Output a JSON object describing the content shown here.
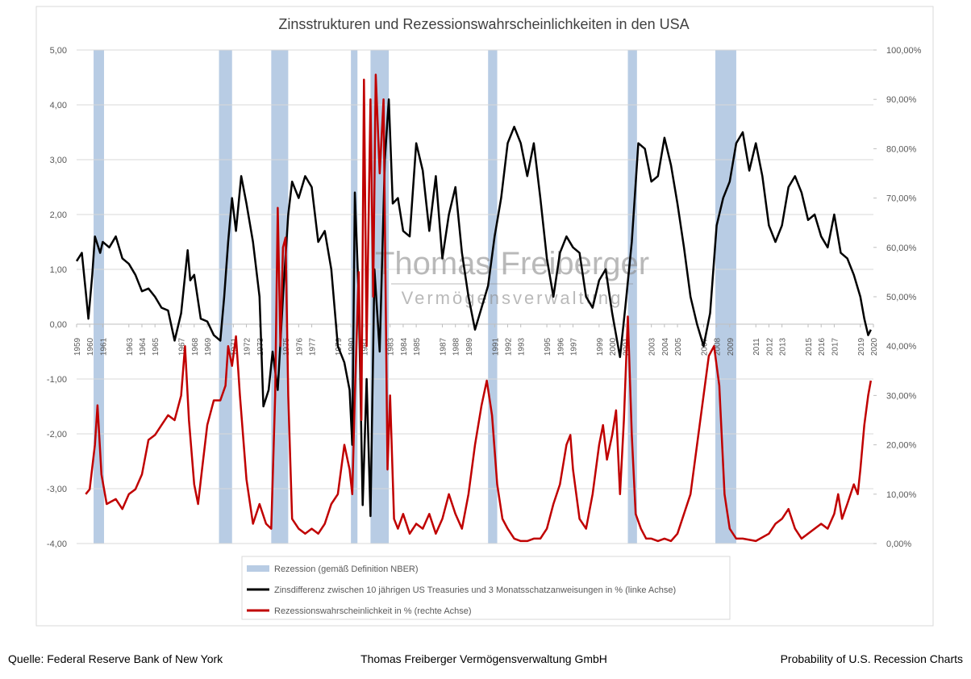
{
  "chart_data": {
    "type": "line",
    "title": "Zinsstrukturen und Rezessionswahrscheinlichkeiten in den USA",
    "watermark": [
      "Thomas Freiberger",
      "Vermögensverwaltung"
    ],
    "footer": [
      "Quelle: Federal Reserve Bank of New York",
      "Thomas Freiberger Vermögensverwaltung GmbH",
      "Probability of U.S. Recession Charts"
    ],
    "xlim": [
      1959,
      2020
    ],
    "xticks": [
      1959,
      1960,
      1961,
      1963,
      1964,
      1965,
      1967,
      1968,
      1969,
      1971,
      1972,
      1973,
      1975,
      1976,
      1977,
      1979,
      1980,
      1981,
      1983,
      1984,
      1985,
      1987,
      1988,
      1989,
      1991,
      1992,
      1993,
      1995,
      1996,
      1997,
      1999,
      2000,
      2001,
      2003,
      2004,
      2005,
      2007,
      2008,
      2009,
      2011,
      2012,
      2013,
      2015,
      2016,
      2017,
      2019,
      2020
    ],
    "ylim": [
      -4,
      5
    ],
    "yticks": [
      {
        "value": -4,
        "label": "-4,00"
      },
      {
        "value": -3,
        "label": "-3,00"
      },
      {
        "value": -2,
        "label": "-2,00"
      },
      {
        "value": -1,
        "label": "-1,00"
      },
      {
        "value": 0,
        "label": "0,00"
      },
      {
        "value": 1,
        "label": "1,00"
      },
      {
        "value": 2,
        "label": "2,00"
      },
      {
        "value": 3,
        "label": "3,00"
      },
      {
        "value": 4,
        "label": "4,00"
      },
      {
        "value": 5,
        "label": "5,00"
      }
    ],
    "y2lim": [
      0,
      100
    ],
    "y2ticks": [
      {
        "value": 0,
        "label": "0,00%"
      },
      {
        "value": 10,
        "label": "10,00%"
      },
      {
        "value": 20,
        "label": "20,00%"
      },
      {
        "value": 30,
        "label": "30,00%"
      },
      {
        "value": 40,
        "label": "40,00%"
      },
      {
        "value": 50,
        "label": "50,00%"
      },
      {
        "value": 60,
        "label": "60,00%"
      },
      {
        "value": 70,
        "label": "70,00%"
      },
      {
        "value": 80,
        "label": "80,00%"
      },
      {
        "value": 90,
        "label": "90,00%"
      },
      {
        "value": 100,
        "label": "100,00%"
      }
    ],
    "recessions": {
      "name": "Rezession (gemäß Definition NBER)",
      "color": "#b8cce4",
      "periods": [
        [
          1960.3,
          1961.1
        ],
        [
          1969.9,
          1970.9
        ],
        [
          1973.9,
          1975.2
        ],
        [
          1980.0,
          1980.5
        ],
        [
          1981.5,
          1982.9
        ],
        [
          1990.5,
          1991.2
        ],
        [
          2001.2,
          2001.9
        ],
        [
          2007.9,
          2009.5
        ]
      ]
    },
    "series": [
      {
        "name": "Zinsdifferenz zwischen 10 jährigen US Treasuries und 3 Monatsschatzanweisungen in % (linke Achse)",
        "color": "#000000",
        "axis": "y",
        "x": [
          1959.0,
          1959.4,
          1959.7,
          1959.9,
          1960.2,
          1960.4,
          1960.8,
          1961.0,
          1961.5,
          1962.0,
          1962.5,
          1963.0,
          1963.5,
          1964.0,
          1964.5,
          1965.0,
          1965.5,
          1966.0,
          1966.5,
          1967.0,
          1967.5,
          1967.7,
          1968.0,
          1968.5,
          1969.0,
          1969.5,
          1970.0,
          1970.3,
          1970.6,
          1970.9,
          1971.2,
          1971.6,
          1972.0,
          1972.5,
          1973.0,
          1973.3,
          1973.7,
          1974.0,
          1974.4,
          1974.8,
          1975.2,
          1975.5,
          1976.0,
          1976.5,
          1977.0,
          1977.5,
          1978.0,
          1978.5,
          1979.0,
          1979.5,
          1979.9,
          1980.1,
          1980.3,
          1980.6,
          1980.9,
          1981.2,
          1981.5,
          1981.8,
          1982.2,
          1982.6,
          1982.9,
          1983.2,
          1983.6,
          1984.0,
          1984.5,
          1985.0,
          1985.5,
          1986.0,
          1986.5,
          1987.0,
          1987.5,
          1988.0,
          1988.5,
          1989.0,
          1989.5,
          1990.0,
          1990.5,
          1991.0,
          1991.5,
          1992.0,
          1992.5,
          1993.0,
          1993.5,
          1994.0,
          1994.5,
          1995.0,
          1995.5,
          1996.0,
          1996.5,
          1997.0,
          1997.5,
          1998.0,
          1998.5,
          1999.0,
          1999.5,
          2000.0,
          2000.6,
          2001.0,
          2001.5,
          2002.0,
          2002.5,
          2003.0,
          2003.5,
          2004.0,
          2004.5,
          2005.0,
          2005.5,
          2006.0,
          2006.5,
          2007.0,
          2007.5,
          2008.0,
          2008.5,
          2009.0,
          2009.5,
          2010.0,
          2010.5,
          2011.0,
          2011.5,
          2012.0,
          2012.5,
          2013.0,
          2013.5,
          2014.0,
          2014.5,
          2015.0,
          2015.5,
          2016.0,
          2016.5,
          2017.0,
          2017.5,
          2018.0,
          2018.5,
          2019.0,
          2019.3,
          2019.6,
          2019.8
        ],
        "values": [
          1.15,
          1.3,
          0.6,
          0.1,
          0.9,
          1.6,
          1.3,
          1.5,
          1.4,
          1.6,
          1.2,
          1.1,
          0.9,
          0.6,
          0.65,
          0.5,
          0.3,
          0.25,
          -0.3,
          0.2,
          1.35,
          0.8,
          0.9,
          0.1,
          0.05,
          -0.2,
          -0.3,
          0.5,
          1.5,
          2.3,
          1.7,
          2.7,
          2.2,
          1.5,
          0.5,
          -1.5,
          -1.2,
          -0.5,
          -1.2,
          0.5,
          2.0,
          2.6,
          2.3,
          2.7,
          2.5,
          1.5,
          1.7,
          1.0,
          -0.4,
          -0.7,
          -1.2,
          -2.2,
          2.4,
          0.5,
          -3.3,
          -1.0,
          -3.5,
          1.0,
          -0.5,
          3.0,
          4.1,
          2.2,
          2.3,
          1.7,
          1.6,
          3.3,
          2.8,
          1.7,
          2.7,
          1.2,
          2.0,
          2.5,
          1.3,
          0.5,
          -0.1,
          0.3,
          0.7,
          1.6,
          2.3,
          3.3,
          3.6,
          3.3,
          2.7,
          3.3,
          2.3,
          1.2,
          0.5,
          1.3,
          1.6,
          1.4,
          1.3,
          0.5,
          0.3,
          0.8,
          1.0,
          0.2,
          -0.6,
          0.3,
          1.5,
          3.3,
          3.2,
          2.6,
          2.7,
          3.4,
          2.9,
          2.2,
          1.4,
          0.5,
          0,
          -0.4,
          0.2,
          1.8,
          2.3,
          2.6,
          3.3,
          3.5,
          2.8,
          3.3,
          2.7,
          1.8,
          1.5,
          1.8,
          2.5,
          2.7,
          2.4,
          1.9,
          2.0,
          1.6,
          1.4,
          2.0,
          1.3,
          1.2,
          0.9,
          0.5,
          0.1,
          -0.2,
          -0.1
        ]
      },
      {
        "name": "Rezessionswahrscheinlichkeit in % (rechte Achse)",
        "color": "#c00000",
        "axis": "y2",
        "x": [
          1959.7,
          1960.0,
          1960.4,
          1960.6,
          1960.9,
          1961.3,
          1962.0,
          1962.5,
          1963.0,
          1963.5,
          1964.0,
          1964.5,
          1965.0,
          1965.5,
          1966.0,
          1966.5,
          1967.0,
          1967.3,
          1967.6,
          1968.0,
          1968.3,
          1968.6,
          1969.0,
          1969.5,
          1970.0,
          1970.4,
          1970.6,
          1970.9,
          1971.2,
          1971.5,
          1972.0,
          1972.5,
          1973.0,
          1973.5,
          1973.9,
          1974.2,
          1974.4,
          1974.6,
          1974.8,
          1975.0,
          1975.2,
          1975.5,
          1976.0,
          1976.5,
          1977.0,
          1977.5,
          1978.0,
          1978.5,
          1979.0,
          1979.5,
          1979.9,
          1980.1,
          1980.3,
          1980.6,
          1980.8,
          1981.0,
          1981.2,
          1981.5,
          1981.7,
          1981.9,
          1982.2,
          1982.5,
          1982.8,
          1983.0,
          1983.3,
          1983.6,
          1984.0,
          1984.5,
          1985.0,
          1985.5,
          1986.0,
          1986.5,
          1987.0,
          1987.5,
          1988.0,
          1988.5,
          1989.0,
          1989.5,
          1990.0,
          1990.4,
          1990.8,
          1991.2,
          1991.6,
          1992.0,
          1992.5,
          1993.0,
          1993.5,
          1994.0,
          1994.5,
          1995.0,
          1995.5,
          1996.0,
          1996.5,
          1996.8,
          1997.0,
          1997.5,
          1998.0,
          1998.5,
          1999.0,
          1999.3,
          1999.6,
          2000.0,
          2000.3,
          2000.6,
          2000.9,
          2001.2,
          2001.5,
          2001.8,
          2002.2,
          2002.6,
          2003.0,
          2003.5,
          2004.0,
          2004.5,
          2005.0,
          2005.5,
          2006.0,
          2006.5,
          2007.0,
          2007.4,
          2007.8,
          2008.2,
          2008.6,
          2009.0,
          2009.5,
          2010.0,
          2011.0,
          2012.0,
          2012.5,
          2013.0,
          2013.5,
          2014.0,
          2014.5,
          2015.0,
          2015.5,
          2016.0,
          2016.5,
          2017.0,
          2017.3,
          2017.6,
          2018.0,
          2018.5,
          2018.8,
          2019.0,
          2019.3,
          2019.6,
          2019.8
        ],
        "values": [
          10,
          11,
          20,
          28,
          14,
          8,
          9,
          7,
          10,
          11,
          14,
          21,
          22,
          24,
          26,
          25,
          30,
          40,
          25,
          12,
          8,
          15,
          24,
          29,
          29,
          32,
          40,
          36,
          42,
          30,
          13,
          4,
          8,
          4,
          3,
          30,
          68,
          40,
          60,
          62,
          30,
          5,
          3,
          2,
          3,
          2,
          4,
          8,
          10,
          20,
          15,
          10,
          30,
          55,
          25,
          94,
          40,
          90,
          50,
          95,
          75,
          90,
          15,
          30,
          5,
          3,
          6,
          2,
          4,
          3,
          6,
          2,
          5,
          10,
          6,
          3,
          10,
          20,
          28,
          33,
          26,
          12,
          5,
          3,
          1,
          0.5,
          0.5,
          1,
          1,
          3,
          8,
          12,
          20,
          22,
          15,
          5,
          3,
          10,
          20,
          24,
          17,
          22,
          27,
          10,
          25,
          46,
          22,
          6,
          3,
          1,
          1,
          0.5,
          1,
          0.5,
          2,
          6,
          10,
          20,
          30,
          38,
          40,
          32,
          10,
          3,
          1,
          1,
          0.5,
          2,
          4,
          5,
          7,
          3,
          1,
          2,
          3,
          4,
          3,
          6,
          10,
          5,
          8,
          12,
          10,
          15,
          24,
          30,
          33
        ]
      }
    ]
  }
}
